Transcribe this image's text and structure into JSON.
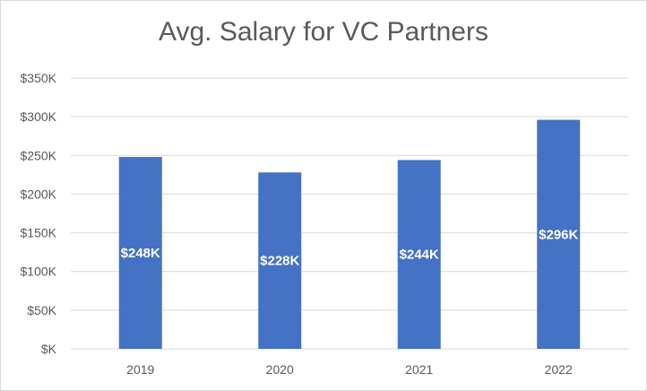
{
  "chart_data": {
    "type": "bar",
    "title": "Avg. Salary for VC Partners",
    "categories": [
      "2019",
      "2020",
      "2021",
      "2022"
    ],
    "values": [
      248,
      228,
      244,
      296
    ],
    "data_labels": [
      "$248K",
      "$228K",
      "$244K",
      "$296K"
    ],
    "y_ticks": [
      "$K",
      "$50K",
      "$100K",
      "$150K",
      "$200K",
      "$250K",
      "$300K",
      "$350K"
    ],
    "ylim": [
      0,
      350
    ],
    "y_step": 50,
    "unit": "thousands USD",
    "xlabel": "",
    "ylabel": "",
    "grid": true,
    "legend": "none",
    "colors": {
      "bar": "#4472c4",
      "grid": "#d9d9d9",
      "text": "#595959",
      "label": "#ffffff"
    }
  }
}
